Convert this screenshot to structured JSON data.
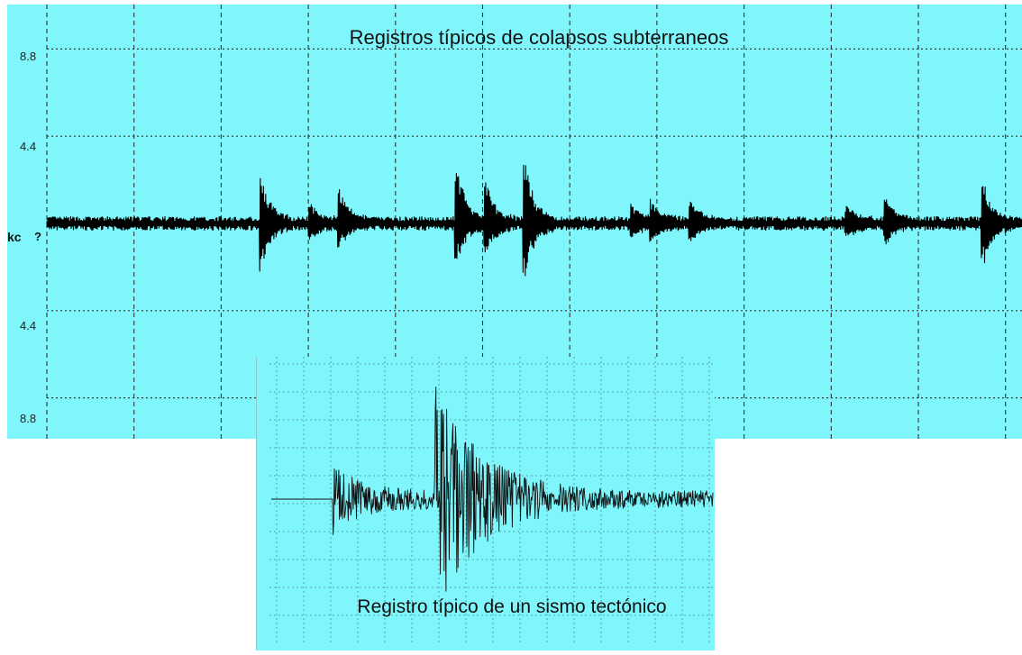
{
  "chart_data": [
    {
      "type": "line",
      "title": "Registros típicos de colapsos subterraneos",
      "ylabel": "kc",
      "y_marker": "?",
      "ytick_labels": [
        "8.8",
        "4.4",
        "4.4",
        "8.8"
      ],
      "ytick_values": [
        8.8,
        4.4,
        -4.4,
        -8.8
      ],
      "ylim": [
        -10,
        10
      ],
      "grid": true,
      "baseline_noise": 0.3,
      "bursts": [
        {
          "x": 0.22,
          "peak_up": 2.5,
          "peak_down": 2.3
        },
        {
          "x": 0.27,
          "peak_up": 0.9,
          "peak_down": 0.6
        },
        {
          "x": 0.3,
          "peak_up": 1.8,
          "peak_down": 1.0
        },
        {
          "x": 0.42,
          "peak_up": 3.1,
          "peak_down": 2.0
        },
        {
          "x": 0.45,
          "peak_up": 2.0,
          "peak_down": 1.5
        },
        {
          "x": 0.49,
          "peak_up": 3.4,
          "peak_down": 2.7
        },
        {
          "x": 0.6,
          "peak_up": 0.9,
          "peak_down": 0.6
        },
        {
          "x": 0.62,
          "peak_up": 1.1,
          "peak_down": 0.8
        },
        {
          "x": 0.66,
          "peak_up": 1.0,
          "peak_down": 0.7
        },
        {
          "x": 0.82,
          "peak_up": 0.8,
          "peak_down": 0.6
        },
        {
          "x": 0.86,
          "peak_up": 1.2,
          "peak_down": 0.9
        },
        {
          "x": 0.96,
          "peak_up": 2.0,
          "peak_down": 2.0
        }
      ]
    },
    {
      "type": "line",
      "title": "Registro típico de un sismo tectónico",
      "grid": true,
      "arrival_p": 0.14,
      "arrival_s": 0.37,
      "peak_amplitude": 1.0
    }
  ]
}
